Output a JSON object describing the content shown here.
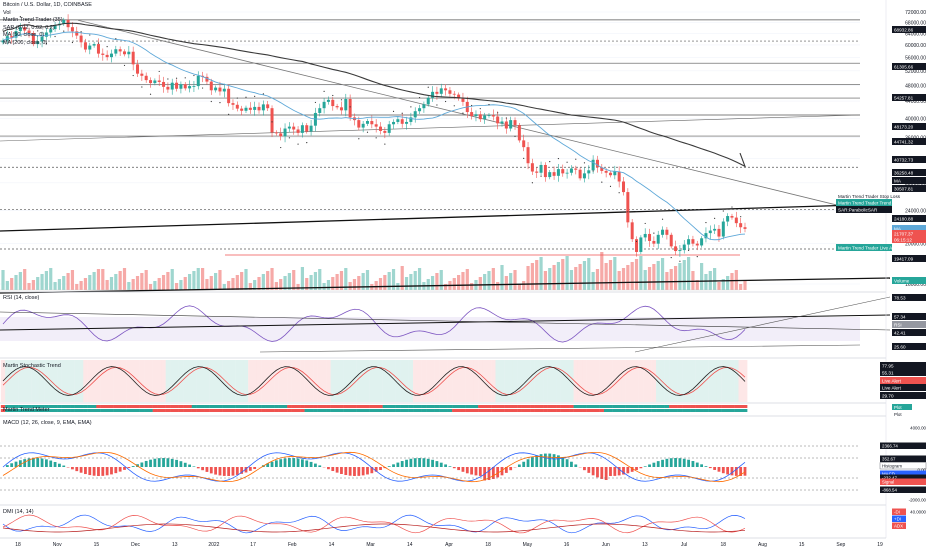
{
  "header": {
    "title": "Bitcoin / U.S. Dollar, 1D, COINBASE",
    "indicators": [
      "Vol",
      "Martin Trend Trader (35)",
      "SAR (0.02, 0.02, 0.2)",
      "MA (50, close, 0)",
      "MA (200, close, 0)"
    ]
  },
  "colors": {
    "up": "#26a69a",
    "down": "#ef5350",
    "ma50": "#5ea8d8",
    "ma200": "#3a3a3a",
    "sar": "#333333",
    "rsi": "#7e57c2",
    "stoch_k": "#222222",
    "stoch_d": "#ef5350",
    "macd": "#2962ff",
    "signal": "#ff6d00",
    "plus_di": "#2962ff",
    "minus_di": "#ef5350",
    "adx": "#b71c1c"
  },
  "chart_data": {
    "type": "candlestick",
    "price_axis": {
      "ticks": [
        "72000.00",
        "68000.00",
        "64000.00",
        "60000.00",
        "56000.00",
        "52000.00",
        "48000.00",
        "44000.00",
        "40000.00",
        "36000.00",
        "32000.00",
        "28000.00",
        "24000.00",
        "20000.00",
        "16000.00"
      ]
    },
    "price_badges": [
      {
        "text": "68932.86",
        "color": "#131722"
      },
      {
        "text": "61305.66",
        "color": "#131722"
      },
      {
        "text": "54257.81",
        "color": "#131722"
      },
      {
        "text": "48173.20",
        "color": "#131722"
      },
      {
        "text": "44741.32",
        "color": "#131722"
      },
      {
        "text": "40732.73",
        "color": "#131722"
      },
      {
        "text": "36258.48",
        "color": "#131722"
      },
      {
        "text": "MA",
        "color": "#131722"
      },
      {
        "text": "30507.81",
        "color": "#131722"
      },
      {
        "text": "Martin Trend Trader Trend Line",
        "color": "#26a69a"
      },
      {
        "text": "SAR:ParabolicSAR",
        "color": "#131722"
      },
      {
        "text": "24180.88",
        "color": "#131722"
      },
      {
        "text": "MA",
        "color": "#5ea8d8"
      },
      {
        "text": "21707.37",
        "color": "#ef5350"
      },
      {
        "text": "06:15:12",
        "color": "#ef5350"
      },
      {
        "text": "Martin Trend Trader Live Alert",
        "color": "#26a69a"
      },
      {
        "text": "19417.09",
        "color": "#131722"
      },
      {
        "text": "Volume",
        "color": "#26a69a"
      }
    ],
    "price_note": "Martin Trend Trader Stop Loss",
    "time_axis": [
      "18",
      "Nov",
      "15",
      "Dec",
      "13",
      "2022",
      "17",
      "Feb",
      "14",
      "Mar",
      "14",
      "Apr",
      "18",
      "May",
      "16",
      "Jun",
      "13",
      "Jul",
      "18",
      "Aug",
      "15",
      "Sep",
      "19"
    ],
    "closes": [
      61500,
      63000,
      62500,
      64800,
      66200,
      65000,
      64100,
      60300,
      61200,
      62800,
      64300,
      65500,
      66900,
      67500,
      68900,
      66200,
      64700,
      63200,
      60900,
      58500,
      59800,
      60300,
      57200,
      56800,
      56100,
      57200,
      58600,
      57900,
      57000,
      57800,
      53900,
      51200,
      50600,
      49400,
      48600,
      49300,
      48900,
      47600,
      46900,
      48700,
      47100,
      48300,
      47200,
      47800,
      47800,
      50600,
      50300,
      49000,
      46700,
      47400,
      46400,
      47100,
      43500,
      43100,
      42200,
      41700,
      42400,
      41900,
      42600,
      41800,
      43200,
      42300,
      37000,
      36800,
      36200,
      37800,
      38200,
      37600,
      36900,
      38500,
      37200,
      38400,
      41200,
      42300,
      43800,
      44300,
      42800,
      42500,
      41800,
      44500,
      40200,
      39600,
      38000,
      38800,
      39400,
      38700,
      38200,
      37300,
      36900,
      38700,
      39200,
      39800,
      38800,
      39200,
      40200,
      41600,
      42300,
      43200,
      44800,
      46300,
      45800,
      47200,
      46700,
      45800,
      45600,
      44600,
      43800,
      41400,
      40500,
      40900,
      39800,
      40600,
      40700,
      40400,
      38900,
      39300,
      37800,
      39600,
      38500,
      35400,
      34100,
      31200,
      29800,
      29600,
      30900,
      28900,
      29700,
      29100,
      30200,
      29500,
      29600,
      30300,
      30100,
      28700,
      29500,
      30000,
      31800,
      30500,
      29900,
      29600,
      29200,
      29800,
      28200,
      26600,
      22500,
      20500,
      19100,
      20700,
      21100,
      20300,
      20000,
      21000,
      21600,
      21000,
      19700,
      19200,
      19300,
      19900,
      20500,
      20000,
      19800,
      20600,
      21200,
      21500,
      21700,
      20800,
      22600,
      23300,
      23100,
      22400,
      21900,
      21700
    ]
  },
  "panes": {
    "rsi": {
      "label": "RSI (14, close)",
      "badges": [
        "78.53",
        "57.34",
        "RSI",
        "42.41",
        "25.60"
      ]
    },
    "stoch": {
      "label": "Martin Stochastic Trend",
      "badges": [
        "77.95",
        "55.31",
        "Live Alert",
        "Live Alert",
        "29.70"
      ]
    },
    "trend": {
      "label": "Martin Trend Meter",
      "badges": [
        "Plot",
        "Plot"
      ]
    },
    "macd": {
      "label": "MACD (12, 26, close, 9, EMA, EMA)",
      "badges": [
        "4000.00",
        "2366.74",
        "352.67",
        "Histogram",
        "0.00",
        "MACD",
        "-232.47",
        "Signal",
        "-868.54",
        "-2000.00"
      ]
    },
    "dmi": {
      "label": "DMI (14, 14)",
      "badges": [
        "-DI",
        "40.0000",
        "+DI",
        "ADX"
      ]
    }
  }
}
